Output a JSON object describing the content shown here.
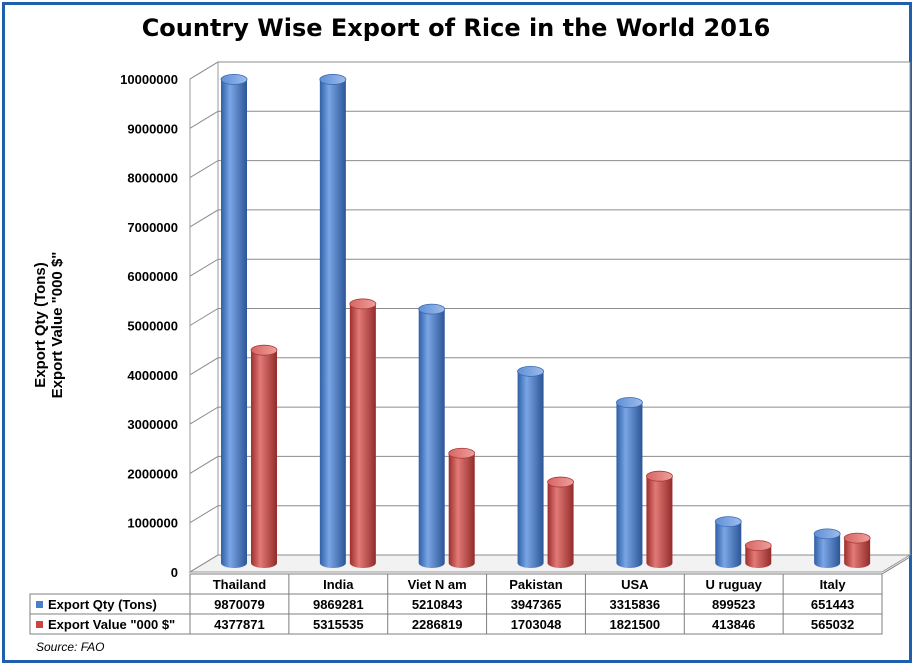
{
  "chart_data": {
    "type": "bar",
    "title": "Country Wise Export of Rice in the World 2016",
    "ylabel_lines": [
      "Export Qty (Tons)",
      "Export Value \"000 $\""
    ],
    "ylim": [
      0,
      10000000
    ],
    "yticks": [
      "0",
      "1000000",
      "2000000",
      "3000000",
      "4000000",
      "5000000",
      "6000000",
      "7000000",
      "8000000",
      "9000000",
      "10000000"
    ],
    "categories": [
      "Thailand",
      "India",
      "Viet N am",
      "Pakistan",
      "USA",
      "U ruguay",
      "Italy"
    ],
    "series": [
      {
        "name": "Export Qty (Tons)",
        "color": "#4a7ec8",
        "values": [
          9870079,
          9869281,
          5210843,
          3947365,
          3315836,
          899523,
          651443
        ],
        "labels": [
          "9870079",
          "9869281",
          "5210843",
          "3947365",
          "3315836",
          "899523",
          "651443"
        ]
      },
      {
        "name": "Export Value \"000 $\"",
        "color": "#c84542",
        "values": [
          4377871,
          5315535,
          2286819,
          1703048,
          1821500,
          413846,
          565032
        ],
        "labels": [
          "4377871",
          "5315535",
          "2286819",
          "1703048",
          "1821500",
          "413846",
          "565032"
        ]
      }
    ],
    "grid": true,
    "legend": "data-table-left",
    "source": "Source: FAO"
  }
}
